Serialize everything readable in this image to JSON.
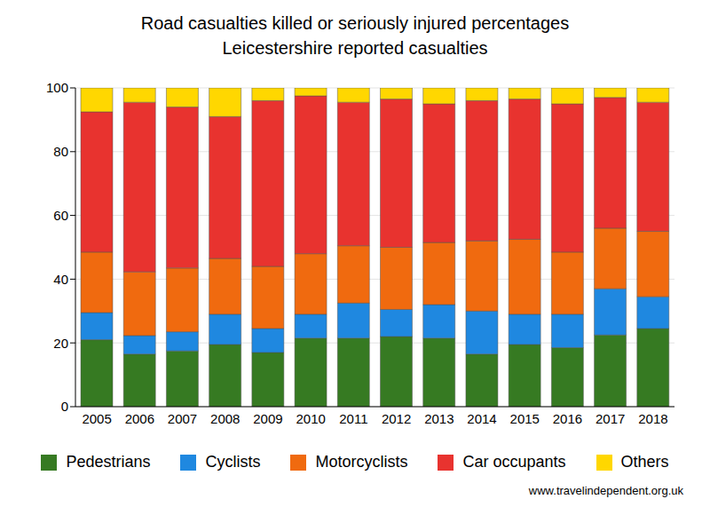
{
  "chart_data": {
    "type": "bar",
    "title": "Road casualties killed or seriously injured percentages",
    "subtitle": "Leicestershire reported casualties",
    "annotations": [
      "www.travelindependent.org.uk"
    ],
    "categories": [
      "2005",
      "2006",
      "2007",
      "2008",
      "2009",
      "2010",
      "2011",
      "2012",
      "2013",
      "2014",
      "2015",
      "2016",
      "2017",
      "2018"
    ],
    "series": [
      {
        "name": "Pedestrians",
        "color": "#367a22",
        "values": [
          21,
          16.5,
          17.5,
          19.5,
          17,
          21.5,
          21.5,
          22,
          21.5,
          16.5,
          19.5,
          18.5,
          22.5,
          24.5
        ]
      },
      {
        "name": "Cyclists",
        "color": "#1f88e0",
        "values": [
          8.5,
          5.8,
          6,
          9.5,
          7.5,
          7.5,
          11,
          8.5,
          10.5,
          13.5,
          9.5,
          10.5,
          14.5,
          10
        ]
      },
      {
        "name": "Motorcyclists",
        "color": "#f06a0f",
        "values": [
          19,
          20,
          20,
          17.5,
          19.5,
          19,
          18,
          19.5,
          19.5,
          22,
          23.5,
          19.5,
          19,
          20.5
        ]
      },
      {
        "name": "Car occupants",
        "color": "#e8332f",
        "values": [
          44,
          53.2,
          50.5,
          44.5,
          52,
          49.5,
          45,
          46.5,
          43.5,
          44,
          44,
          46.5,
          41,
          40.5
        ]
      },
      {
        "name": "Others",
        "color": "#ffd700",
        "values": [
          7.5,
          4.5,
          6,
          9,
          4,
          2.5,
          4.5,
          3.5,
          5,
          4,
          3.5,
          5,
          3,
          4.5
        ]
      }
    ],
    "ylim": [
      0,
      100
    ],
    "yticks": [
      0,
      20,
      40,
      60,
      80,
      100
    ],
    "stacked": true,
    "grid": true,
    "legend": "bottom"
  }
}
